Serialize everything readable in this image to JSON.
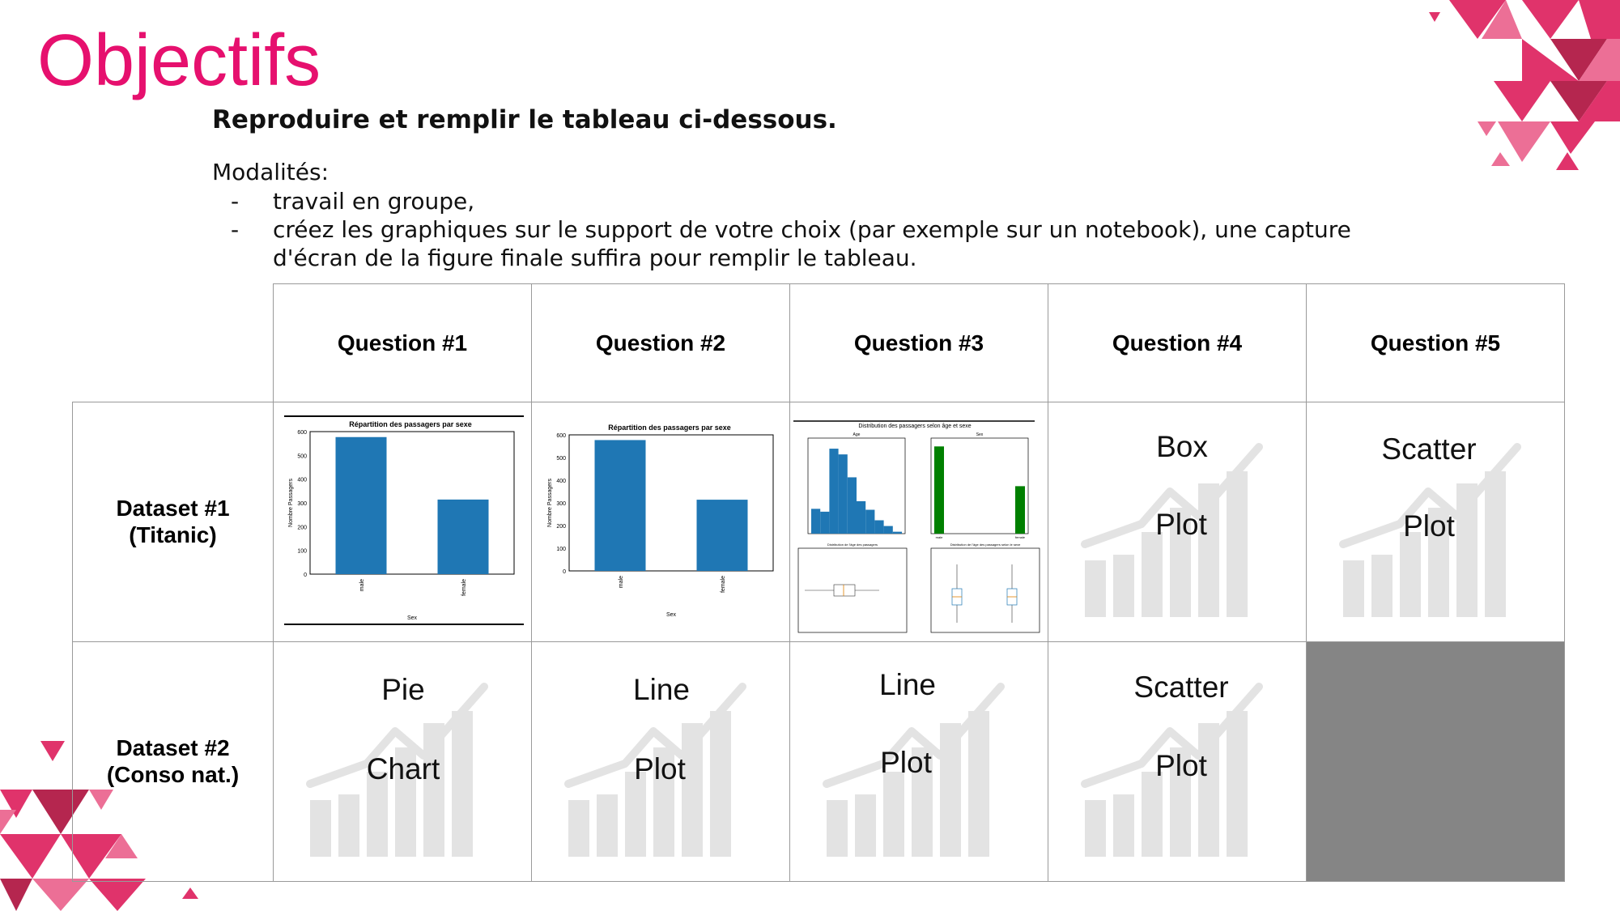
{
  "slide": {
    "title": "Objectifs",
    "subtitle": "Reproduire et remplir le tableau ci-dessous.",
    "modalites_label": "Modalités:",
    "bullets": [
      "travail en groupe,",
      "créez les graphiques sur le support de votre choix (par exemple sur un notebook), une capture",
      "d'écran de la figure finale suffira pour remplir le tableau."
    ],
    "bullet_marker": "-"
  },
  "table": {
    "headers": [
      "Question #1",
      "Question #2",
      "Question #3",
      "Question #4",
      "Question #5"
    ],
    "rows": [
      {
        "label_line1": "Dataset #1",
        "label_line2": "(Titanic)"
      },
      {
        "label_line1": "Dataset #2",
        "label_line2": "(Conso nat.)"
      }
    ],
    "cells": {
      "r1q4": [
        "Box",
        "Plot"
      ],
      "r1q5": [
        "Scatter",
        "Plot"
      ],
      "r2q1": [
        "Pie",
        "Chart"
      ],
      "r2q2": [
        "Line",
        "Plot"
      ],
      "r2q3": [
        "Line",
        "Plot"
      ],
      "r2q4": [
        "Scatter",
        "Plot"
      ]
    },
    "empty_cell_color": "#858585"
  },
  "thumbnails": {
    "q1": {
      "title": "Répartition des passagers par sexe",
      "xlabel": "Sex",
      "ylabel": "Nombre Passagers",
      "categories": [
        "male",
        "female"
      ],
      "values": [
        577,
        314
      ],
      "yticks": [
        "0",
        "100",
        "200",
        "300",
        "400",
        "500",
        "600"
      ]
    },
    "q2": {
      "title": "Répartition des passagers par sexe",
      "xlabel": "Sex",
      "ylabel": "Nombre Passagers",
      "categories": [
        "male",
        "female"
      ],
      "values": [
        577,
        314
      ],
      "yticks": [
        "0",
        "100",
        "200",
        "300",
        "400",
        "500",
        "600"
      ]
    },
    "q3": {
      "title": "Distribution des passagers selon âge et sexe",
      "sub_age": "Age",
      "sub_sex": "Sex",
      "sub_box1": "Distribution de l'âge des passagers",
      "sub_box2": "Distribution de l'âge des passagers selon le sexe",
      "hist_values": [
        52,
        46,
        178,
        166,
        118,
        68,
        50,
        28,
        16,
        4
      ],
      "sex_values": [
        577,
        314
      ],
      "sex_categories": [
        "male",
        "female"
      ]
    }
  },
  "colors": {
    "title": "#e6106e",
    "bar_blue": "#1f77b4",
    "bar_green": "#008000",
    "decor_pink": "#e0336b",
    "decor_dark": "#b5264f",
    "decor_light": "#ec6f96",
    "placeholder_gray": "#e3e3e3"
  }
}
